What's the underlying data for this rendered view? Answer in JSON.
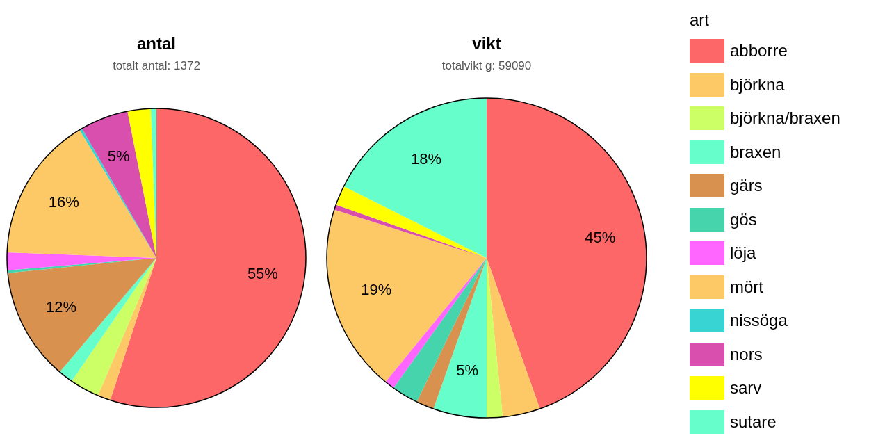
{
  "chart_data": [
    {
      "type": "pie",
      "title": "antal",
      "subtitle": "totalt antal: 1372",
      "categories": [
        null,
        null,
        null,
        null,
        null,
        null,
        null,
        null,
        null,
        null,
        null,
        null
      ],
      "values": [
        55.0,
        1.4,
        3.2,
        1.6,
        12.2,
        0.3,
        1.9,
        15.8,
        0.3,
        5.2,
        2.5,
        0.6
      ],
      "colors": [
        "#fd6767",
        "#fdc966",
        "#ccff66",
        "#66ffcc",
        "#d99150",
        "#45d4ab",
        "#ff66ff",
        "#fdc966",
        "#38d4d4",
        "#d94fae",
        "#ffff00",
        "#66ffcc"
      ],
      "value_labels": [
        "55%",
        null,
        null,
        null,
        "12%",
        null,
        null,
        "16%",
        null,
        "5%",
        null,
        null
      ]
    },
    {
      "type": "pie",
      "title": "vikt",
      "subtitle": "totalvikt g: 59090",
      "categories": [
        "abborre",
        "björkna",
        "björkna/braxen",
        "braxen",
        "gärs",
        "gös",
        "löja",
        "mört",
        "nissöga",
        "nors",
        "sarv",
        "sutare"
      ],
      "values": [
        44.6,
        3.8,
        1.6,
        5.4,
        1.8,
        2.7,
        1.0,
        19.0,
        0,
        0.5,
        2.0,
        17.6
      ],
      "colors": [
        "#fd6767",
        "#fdc966",
        "#ccff66",
        "#66ffcc",
        "#d99150",
        "#45d4ab",
        "#ff66ff",
        "#fdc966",
        "#38d4d4",
        "#d94fae",
        "#ffff00",
        "#66ffcc"
      ],
      "value_labels": [
        "45%",
        null,
        null,
        "5%",
        null,
        null,
        null,
        "19%",
        null,
        null,
        null,
        "18%"
      ],
      "legend": "right",
      "legend_title": "art"
    }
  ]
}
